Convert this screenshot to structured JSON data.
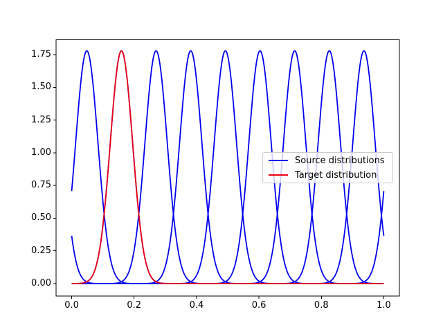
{
  "figure": {
    "background": "#ffffff",
    "title": ""
  },
  "chart_data": {
    "type": "line",
    "title": "",
    "xlabel": "",
    "ylabel": "",
    "grid": false,
    "xlim": [
      -0.05,
      1.05
    ],
    "ylim": [
      -0.0952,
      1.8643
    ],
    "x_ticks": [
      0.0,
      0.2,
      0.4,
      0.6,
      0.8,
      1.0
    ],
    "x_tick_labels": [
      "0.0",
      "0.2",
      "0.4",
      "0.6",
      "0.8",
      "1.0"
    ],
    "y_ticks": [
      0.0,
      0.25,
      0.5,
      0.75,
      1.0,
      1.25,
      1.5,
      1.75
    ],
    "y_tick_labels": [
      "0.00",
      "0.25",
      "0.50",
      "0.75",
      "1.00",
      "1.25",
      "1.50",
      "1.75"
    ],
    "series": [
      {
        "name": "Source distributions",
        "color": "#0000ee",
        "curve": "gaussian",
        "wrap_period": 1,
        "means": [
          0.0485,
          0.1595,
          0.2705,
          0.3815,
          0.4925,
          0.6035,
          0.7145,
          0.8255,
          0.9365
        ],
        "sigma": 0.0357,
        "amplitude": 1.78,
        "peak_value": 1.78,
        "domain": [
          0,
          1
        ]
      },
      {
        "name": "Target distribution",
        "color": "#ee0011",
        "curve": "gaussian",
        "wrap_period": 1,
        "means": [
          0.1595
        ],
        "sigma": 0.0357,
        "amplitude": 1.78,
        "peak_value": 1.78,
        "domain": [
          0,
          1
        ]
      }
    ],
    "legend": {
      "position": "center right",
      "border_color": "#cccccc",
      "background": "rgba(255,255,255,0.8)",
      "entries": [
        "Source distributions",
        "Target distribution"
      ]
    }
  }
}
